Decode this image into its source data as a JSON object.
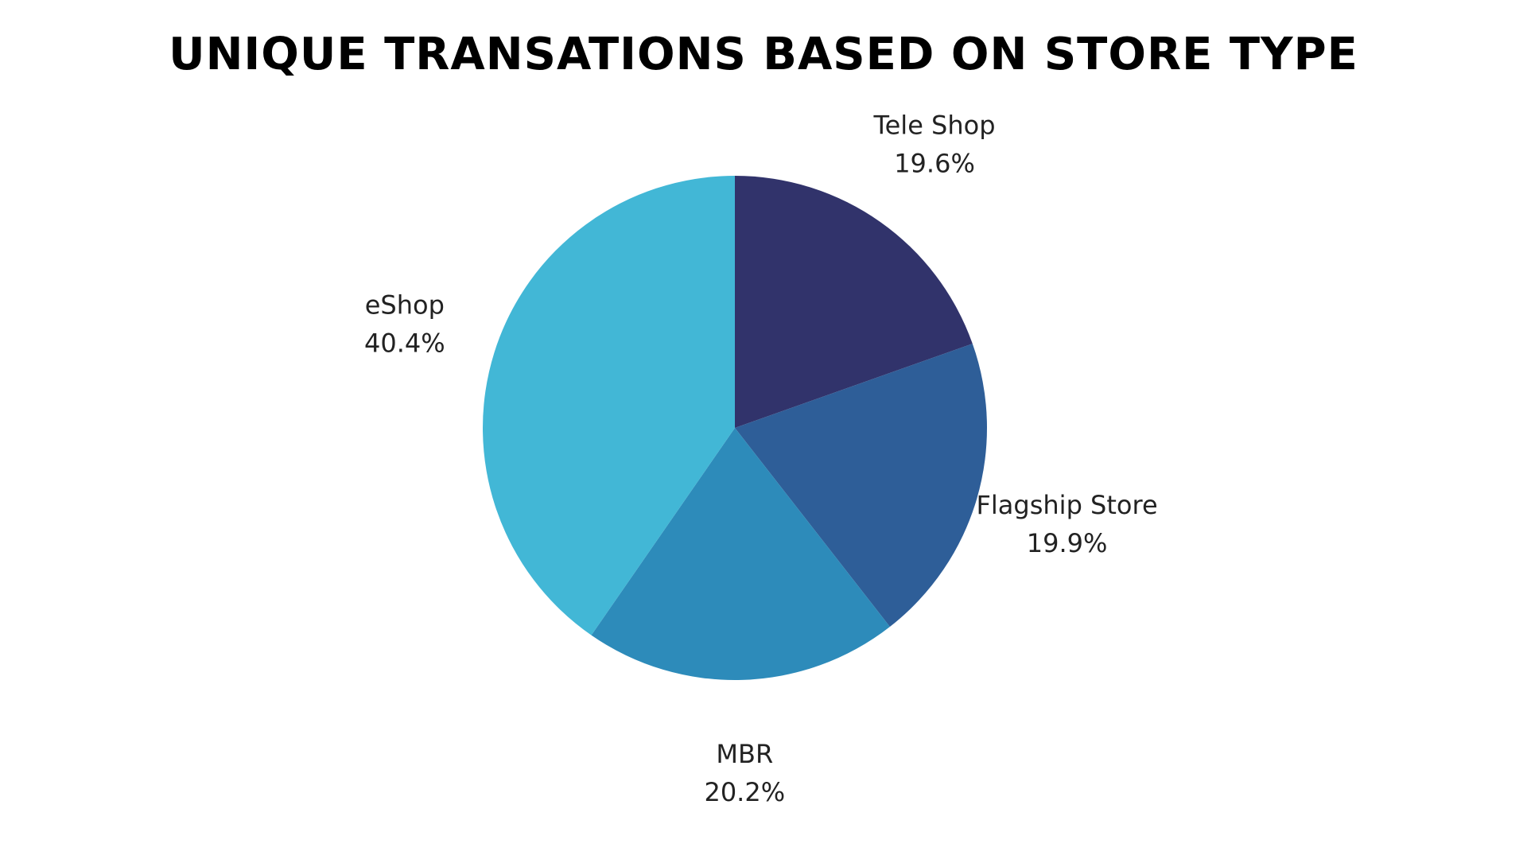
{
  "chart_data": {
    "type": "pie",
    "title": "UNIQUE TRANSATIONS BASED ON STORE TYPE",
    "unit": "%",
    "legend": "none",
    "start_angle_deg": 0,
    "direction": "clockwise",
    "slices": [
      {
        "label": "Tele Shop",
        "value": 19.6,
        "display": "19.6%",
        "color": "#31336b"
      },
      {
        "label": "Flagship Store",
        "value": 19.9,
        "display": "19.9%",
        "color": "#2e5e98"
      },
      {
        "label": "MBR",
        "value": 20.2,
        "display": "20.2%",
        "color": "#2d8bba"
      },
      {
        "label": "eShop",
        "value": 40.4,
        "display": "40.4%",
        "color": "#42b7d6"
      }
    ]
  }
}
